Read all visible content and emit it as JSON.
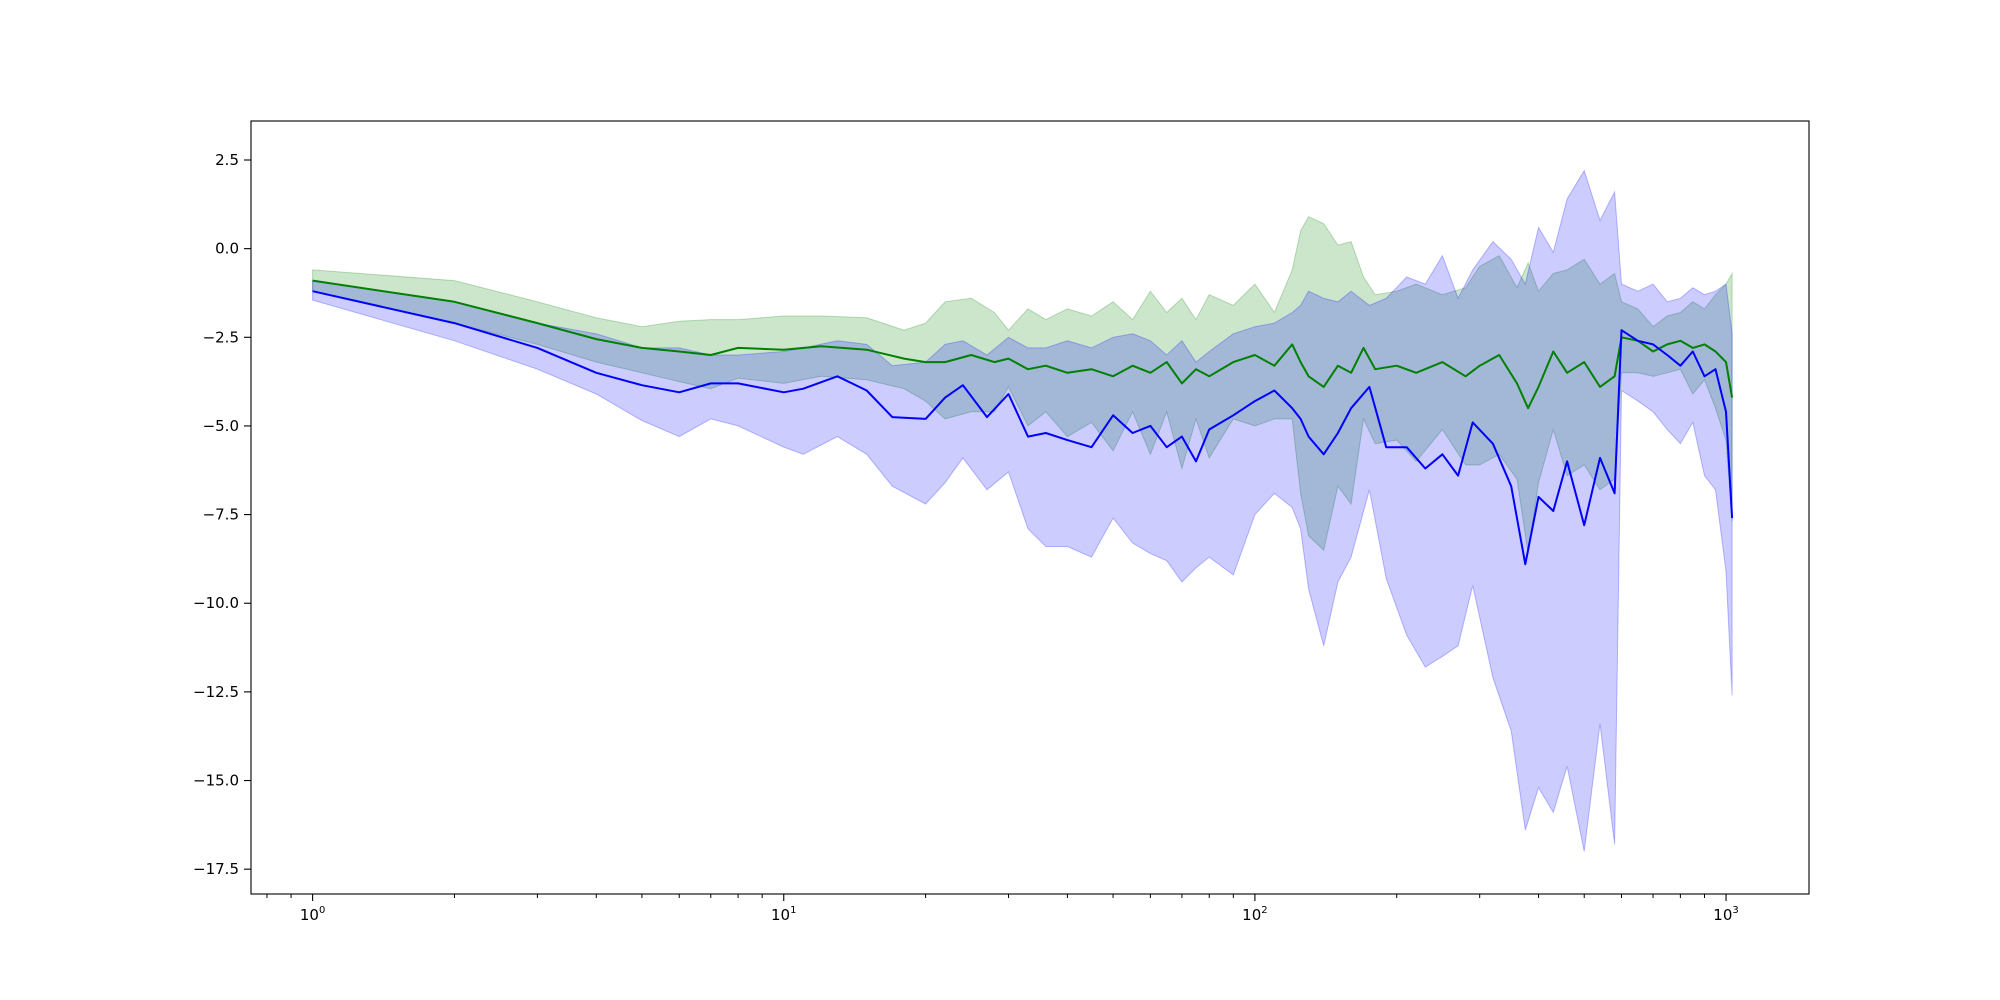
{
  "chart_data": {
    "type": "line",
    "title": "",
    "xlabel": "",
    "ylabel": "",
    "x_scale": "log",
    "xlim": [
      0.74,
      1500
    ],
    "ylim": [
      -18.2,
      3.6
    ],
    "grid": false,
    "legend": "none",
    "x_ticks": [
      {
        "value": 1,
        "base": "10",
        "exp": "0"
      },
      {
        "value": 10,
        "base": "10",
        "exp": "1"
      },
      {
        "value": 100,
        "base": "10",
        "exp": "2"
      },
      {
        "value": 1000,
        "base": "10",
        "exp": "3"
      }
    ],
    "y_ticks": [
      {
        "value": 2.5,
        "label": "2.5"
      },
      {
        "value": 0,
        "label": "0.0"
      },
      {
        "value": -2.5,
        "label": "−2.5"
      },
      {
        "value": -5,
        "label": "−5.0"
      },
      {
        "value": -7.5,
        "label": "−7.5"
      },
      {
        "value": -10,
        "label": "−10.0"
      },
      {
        "value": -12.5,
        "label": "−12.5"
      },
      {
        "value": -15,
        "label": "−15.0"
      },
      {
        "value": -17.5,
        "label": "−17.5"
      }
    ],
    "series": [
      {
        "color": "#008000",
        "band_color": "#008000",
        "band_opacity": 0.2,
        "points": [
          [
            1,
            -0.9,
            -0.6,
            -1.2
          ],
          [
            2,
            -1.5,
            -0.9,
            -2.1
          ],
          [
            3,
            -2.1,
            -1.5,
            -2.7
          ],
          [
            4,
            -2.55,
            -1.95,
            -3.2
          ],
          [
            5,
            -2.8,
            -2.2,
            -3.5
          ],
          [
            6,
            -2.9,
            -2.05,
            -3.75
          ],
          [
            7,
            -3.0,
            -2.0,
            -3.95
          ],
          [
            8,
            -2.8,
            -2.0,
            -3.65
          ],
          [
            10,
            -2.85,
            -1.9,
            -3.8
          ],
          [
            12,
            -2.75,
            -1.9,
            -3.6
          ],
          [
            15,
            -2.85,
            -1.95,
            -3.7
          ],
          [
            18,
            -3.1,
            -2.3,
            -3.95
          ],
          [
            20,
            -3.2,
            -2.1,
            -4.3
          ],
          [
            22,
            -3.2,
            -1.5,
            -4.8
          ],
          [
            25,
            -3.0,
            -1.4,
            -4.6
          ],
          [
            28,
            -3.2,
            -1.8,
            -4.6
          ],
          [
            30,
            -3.1,
            -2.3,
            -3.9
          ],
          [
            33,
            -3.4,
            -1.7,
            -5.0
          ],
          [
            36,
            -3.3,
            -2.0,
            -4.6
          ],
          [
            40,
            -3.5,
            -1.7,
            -5.3
          ],
          [
            45,
            -3.4,
            -1.9,
            -4.9
          ],
          [
            50,
            -3.6,
            -1.5,
            -5.7
          ],
          [
            55,
            -3.3,
            -2.0,
            -4.6
          ],
          [
            60,
            -3.5,
            -1.2,
            -5.8
          ],
          [
            65,
            -3.2,
            -1.8,
            -4.6
          ],
          [
            70,
            -3.8,
            -1.4,
            -6.2
          ],
          [
            75,
            -3.4,
            -2.0,
            -4.8
          ],
          [
            80,
            -3.6,
            -1.3,
            -5.9
          ],
          [
            90,
            -3.2,
            -1.6,
            -4.8
          ],
          [
            100,
            -3.0,
            -1.0,
            -5.0
          ],
          [
            110,
            -3.3,
            -1.8,
            -4.8
          ],
          [
            120,
            -2.7,
            -0.6,
            -4.8
          ],
          [
            125,
            -3.2,
            0.5,
            -6.9
          ],
          [
            130,
            -3.6,
            0.9,
            -8.1
          ],
          [
            140,
            -3.9,
            0.7,
            -8.5
          ],
          [
            150,
            -3.3,
            0.1,
            -6.7
          ],
          [
            160,
            -3.5,
            0.2,
            -7.2
          ],
          [
            170,
            -2.8,
            -0.8,
            -4.8
          ],
          [
            180,
            -3.4,
            -1.3,
            -5.5
          ],
          [
            200,
            -3.3,
            -1.2,
            -5.4
          ],
          [
            220,
            -3.5,
            -1.0,
            -6.0
          ],
          [
            250,
            -3.2,
            -1.3,
            -5.1
          ],
          [
            280,
            -3.6,
            -1.1,
            -6.1
          ],
          [
            300,
            -3.3,
            -0.5,
            -6.1
          ],
          [
            330,
            -3.0,
            -0.2,
            -5.8
          ],
          [
            360,
            -3.8,
            -1.1,
            -6.5
          ],
          [
            380,
            -4.5,
            -0.4,
            -8.6
          ],
          [
            400,
            -3.9,
            -1.2,
            -6.6
          ],
          [
            430,
            -2.9,
            -0.7,
            -5.1
          ],
          [
            460,
            -3.5,
            -0.6,
            -6.4
          ],
          [
            500,
            -3.2,
            -0.3,
            -6.1
          ],
          [
            540,
            -3.9,
            -1.0,
            -6.8
          ],
          [
            580,
            -3.6,
            -0.7,
            -6.5
          ],
          [
            600,
            -2.5,
            -1.5,
            -3.5
          ],
          [
            650,
            -2.6,
            -1.7,
            -3.5
          ],
          [
            700,
            -2.9,
            -2.2,
            -3.6
          ],
          [
            750,
            -2.7,
            -1.9,
            -3.5
          ],
          [
            800,
            -2.6,
            -1.8,
            -3.4
          ],
          [
            850,
            -2.8,
            -1.5,
            -4.1
          ],
          [
            900,
            -2.7,
            -1.7,
            -3.7
          ],
          [
            950,
            -2.9,
            -1.3,
            -4.5
          ],
          [
            1000,
            -3.2,
            -1.0,
            -5.4
          ],
          [
            1030,
            -4.2,
            -0.7,
            -7.7
          ]
        ]
      },
      {
        "color": "#0000ff",
        "band_color": "#0000ff",
        "band_opacity": 0.2,
        "points": [
          [
            1,
            -1.2,
            -0.9,
            -1.45
          ],
          [
            2,
            -2.1,
            -1.5,
            -2.6
          ],
          [
            3,
            -2.8,
            -2.1,
            -3.4
          ],
          [
            4,
            -3.5,
            -2.4,
            -4.1
          ],
          [
            5,
            -3.85,
            -2.8,
            -4.85
          ],
          [
            6,
            -4.05,
            -2.8,
            -5.3
          ],
          [
            7,
            -3.8,
            -3.0,
            -4.8
          ],
          [
            8,
            -3.8,
            -3.0,
            -5.0
          ],
          [
            10,
            -4.05,
            -2.9,
            -5.6
          ],
          [
            11,
            -3.95,
            -2.8,
            -5.8
          ],
          [
            13,
            -3.6,
            -2.6,
            -5.3
          ],
          [
            15,
            -4.0,
            -2.7,
            -5.8
          ],
          [
            17,
            -4.75,
            -3.3,
            -6.7
          ],
          [
            20,
            -4.8,
            -3.2,
            -7.2
          ],
          [
            22,
            -4.2,
            -2.7,
            -6.6
          ],
          [
            24,
            -3.85,
            -2.6,
            -5.9
          ],
          [
            27,
            -4.75,
            -3.0,
            -6.8
          ],
          [
            30,
            -4.1,
            -2.5,
            -6.3
          ],
          [
            33,
            -5.3,
            -2.8,
            -7.9
          ],
          [
            36,
            -5.2,
            -2.8,
            -8.4
          ],
          [
            40,
            -5.4,
            -2.6,
            -8.4
          ],
          [
            45,
            -5.6,
            -2.8,
            -8.7
          ],
          [
            50,
            -4.7,
            -2.5,
            -7.6
          ],
          [
            55,
            -5.2,
            -2.4,
            -8.3
          ],
          [
            60,
            -5.0,
            -2.6,
            -8.6
          ],
          [
            65,
            -5.6,
            -3.0,
            -8.8
          ],
          [
            70,
            -5.3,
            -2.6,
            -9.4
          ],
          [
            75,
            -6.0,
            -3.2,
            -9.0
          ],
          [
            80,
            -5.1,
            -2.9,
            -8.7
          ],
          [
            90,
            -4.7,
            -2.4,
            -9.2
          ],
          [
            100,
            -4.3,
            -2.2,
            -7.5
          ],
          [
            110,
            -4.0,
            -2.1,
            -6.9
          ],
          [
            120,
            -4.5,
            -1.8,
            -7.3
          ],
          [
            125,
            -4.8,
            -1.6,
            -7.9
          ],
          [
            130,
            -5.3,
            -1.2,
            -9.6
          ],
          [
            140,
            -5.8,
            -1.4,
            -11.2
          ],
          [
            150,
            -5.2,
            -1.5,
            -9.4
          ],
          [
            160,
            -4.5,
            -1.2,
            -8.7
          ],
          [
            175,
            -3.9,
            -1.6,
            -6.8
          ],
          [
            190,
            -5.6,
            -1.4,
            -9.3
          ],
          [
            210,
            -5.6,
            -0.8,
            -10.9
          ],
          [
            230,
            -6.2,
            -1.0,
            -11.8
          ],
          [
            250,
            -5.8,
            -0.2,
            -11.5
          ],
          [
            270,
            -6.4,
            -1.4,
            -11.2
          ],
          [
            290,
            -4.9,
            -0.6,
            -9.5
          ],
          [
            320,
            -5.5,
            0.2,
            -12.1
          ],
          [
            350,
            -6.7,
            -0.3,
            -13.6
          ],
          [
            375,
            -8.9,
            -1.0,
            -16.4
          ],
          [
            400,
            -7.0,
            0.6,
            -15.2
          ],
          [
            430,
            -7.4,
            -0.1,
            -15.9
          ],
          [
            460,
            -6.0,
            1.4,
            -14.6
          ],
          [
            500,
            -7.8,
            2.2,
            -17.0
          ],
          [
            540,
            -5.9,
            0.8,
            -13.4
          ],
          [
            580,
            -6.9,
            1.6,
            -16.8
          ],
          [
            600,
            -2.3,
            -1.0,
            -4.0
          ],
          [
            650,
            -2.6,
            -1.2,
            -4.3
          ],
          [
            700,
            -2.7,
            -1.0,
            -4.6
          ],
          [
            750,
            -3.0,
            -1.5,
            -5.1
          ],
          [
            800,
            -3.3,
            -1.4,
            -5.5
          ],
          [
            850,
            -2.9,
            -1.1,
            -4.9
          ],
          [
            900,
            -3.6,
            -1.3,
            -6.4
          ],
          [
            950,
            -3.4,
            -1.2,
            -6.8
          ],
          [
            1000,
            -4.6,
            -1.0,
            -9.1
          ],
          [
            1030,
            -7.6,
            -2.4,
            -12.6
          ]
        ]
      }
    ]
  }
}
